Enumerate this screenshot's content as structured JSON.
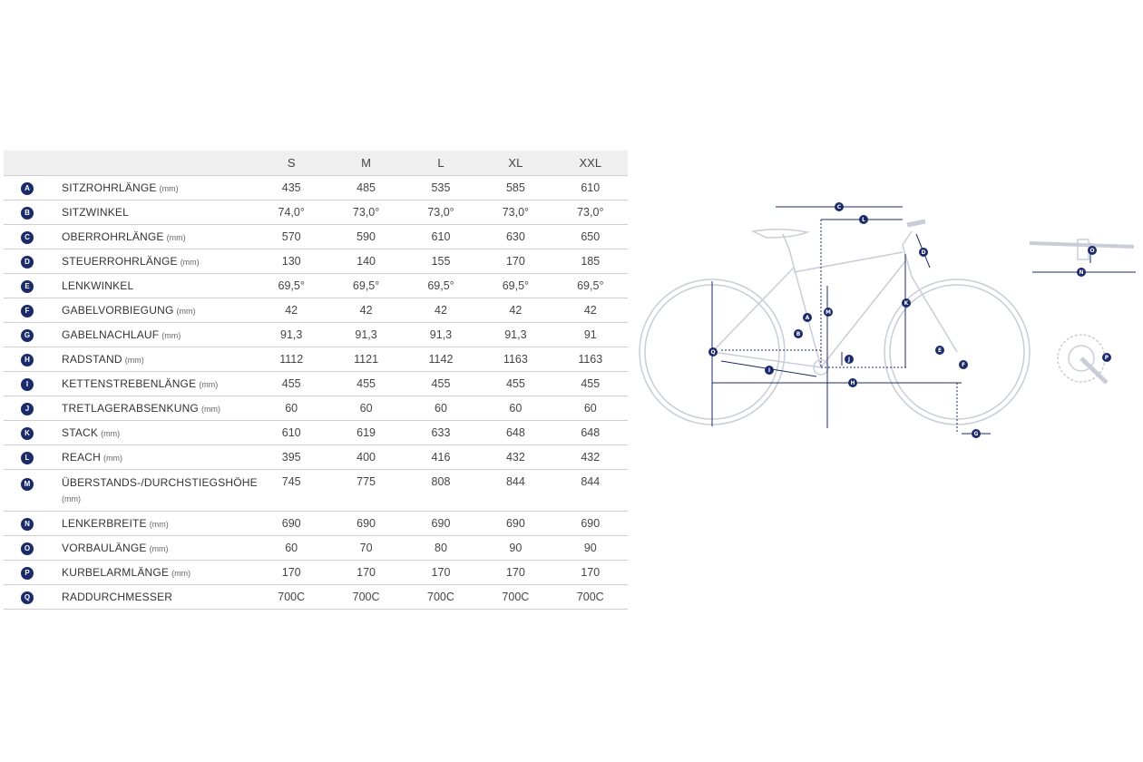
{
  "table": {
    "headers": [
      "S",
      "M",
      "L",
      "XL",
      "XXL"
    ],
    "rows": [
      {
        "badge": "A",
        "label": "SITZROHRLÄNGE",
        "unit": "(mm)",
        "values": [
          "435",
          "485",
          "535",
          "585",
          "610"
        ]
      },
      {
        "badge": "B",
        "label": "SITZWINKEL",
        "unit": "",
        "values": [
          "74,0°",
          "73,0°",
          "73,0°",
          "73,0°",
          "73,0°"
        ]
      },
      {
        "badge": "C",
        "label": "OBERROHRLÄNGE",
        "unit": "(mm)",
        "values": [
          "570",
          "590",
          "610",
          "630",
          "650"
        ]
      },
      {
        "badge": "D",
        "label": "STEUERROHRLÄNGE",
        "unit": "(mm)",
        "values": [
          "130",
          "140",
          "155",
          "170",
          "185"
        ]
      },
      {
        "badge": "E",
        "label": "LENKWINKEL",
        "unit": "",
        "values": [
          "69,5°",
          "69,5°",
          "69,5°",
          "69,5°",
          "69,5°"
        ]
      },
      {
        "badge": "F",
        "label": "GABELVORBIEGUNG",
        "unit": "(mm)",
        "values": [
          "42",
          "42",
          "42",
          "42",
          "42"
        ]
      },
      {
        "badge": "G",
        "label": "GABELNACHLAUF",
        "unit": "(mm)",
        "values": [
          "91,3",
          "91,3",
          "91,3",
          "91,3",
          "91"
        ]
      },
      {
        "badge": "H",
        "label": "RADSTAND",
        "unit": "(mm)",
        "values": [
          "1112",
          "1121",
          "1142",
          "1163",
          "1163"
        ]
      },
      {
        "badge": "I",
        "label": "KETTENSTREBENLÄNGE",
        "unit": "(mm)",
        "values": [
          "455",
          "455",
          "455",
          "455",
          "455"
        ]
      },
      {
        "badge": "J",
        "label": "TRETLAGERABSENKUNG",
        "unit": "(mm)",
        "values": [
          "60",
          "60",
          "60",
          "60",
          "60"
        ]
      },
      {
        "badge": "K",
        "label": "STACK",
        "unit": "(mm)",
        "values": [
          "610",
          "619",
          "633",
          "648",
          "648"
        ]
      },
      {
        "badge": "L",
        "label": "REACH",
        "unit": "(mm)",
        "values": [
          "395",
          "400",
          "416",
          "432",
          "432"
        ]
      },
      {
        "badge": "M",
        "label": "ÜBERSTANDS-/DURCHSTIEGSHÖHE",
        "unit": "(mm)",
        "values": [
          "745",
          "775",
          "808",
          "844",
          "844"
        ],
        "tall": true
      },
      {
        "badge": "N",
        "label": "LENKERBREITE",
        "unit": "(mm)",
        "values": [
          "690",
          "690",
          "690",
          "690",
          "690"
        ]
      },
      {
        "badge": "O",
        "label": "VORBAULÄNGE",
        "unit": "(mm)",
        "values": [
          "60",
          "70",
          "80",
          "90",
          "90"
        ]
      },
      {
        "badge": "P",
        "label": "KURBELARMLÄNGE",
        "unit": "(mm)",
        "values": [
          "170",
          "170",
          "170",
          "170",
          "170"
        ]
      },
      {
        "badge": "Q",
        "label": "RADDURCHMESSER",
        "unit": "",
        "values": [
          "700C",
          "700C",
          "700C",
          "700C",
          "700C"
        ]
      }
    ]
  },
  "diagram": {
    "labels": [
      "A",
      "B",
      "C",
      "D",
      "E",
      "F",
      "G",
      "H",
      "I",
      "J",
      "K",
      "L",
      "M",
      "N",
      "O",
      "P",
      "Q"
    ],
    "colors": {
      "badge": "#1b2a6b",
      "frame": "#c8cdd8",
      "dimension": "#1b2a6b"
    }
  }
}
